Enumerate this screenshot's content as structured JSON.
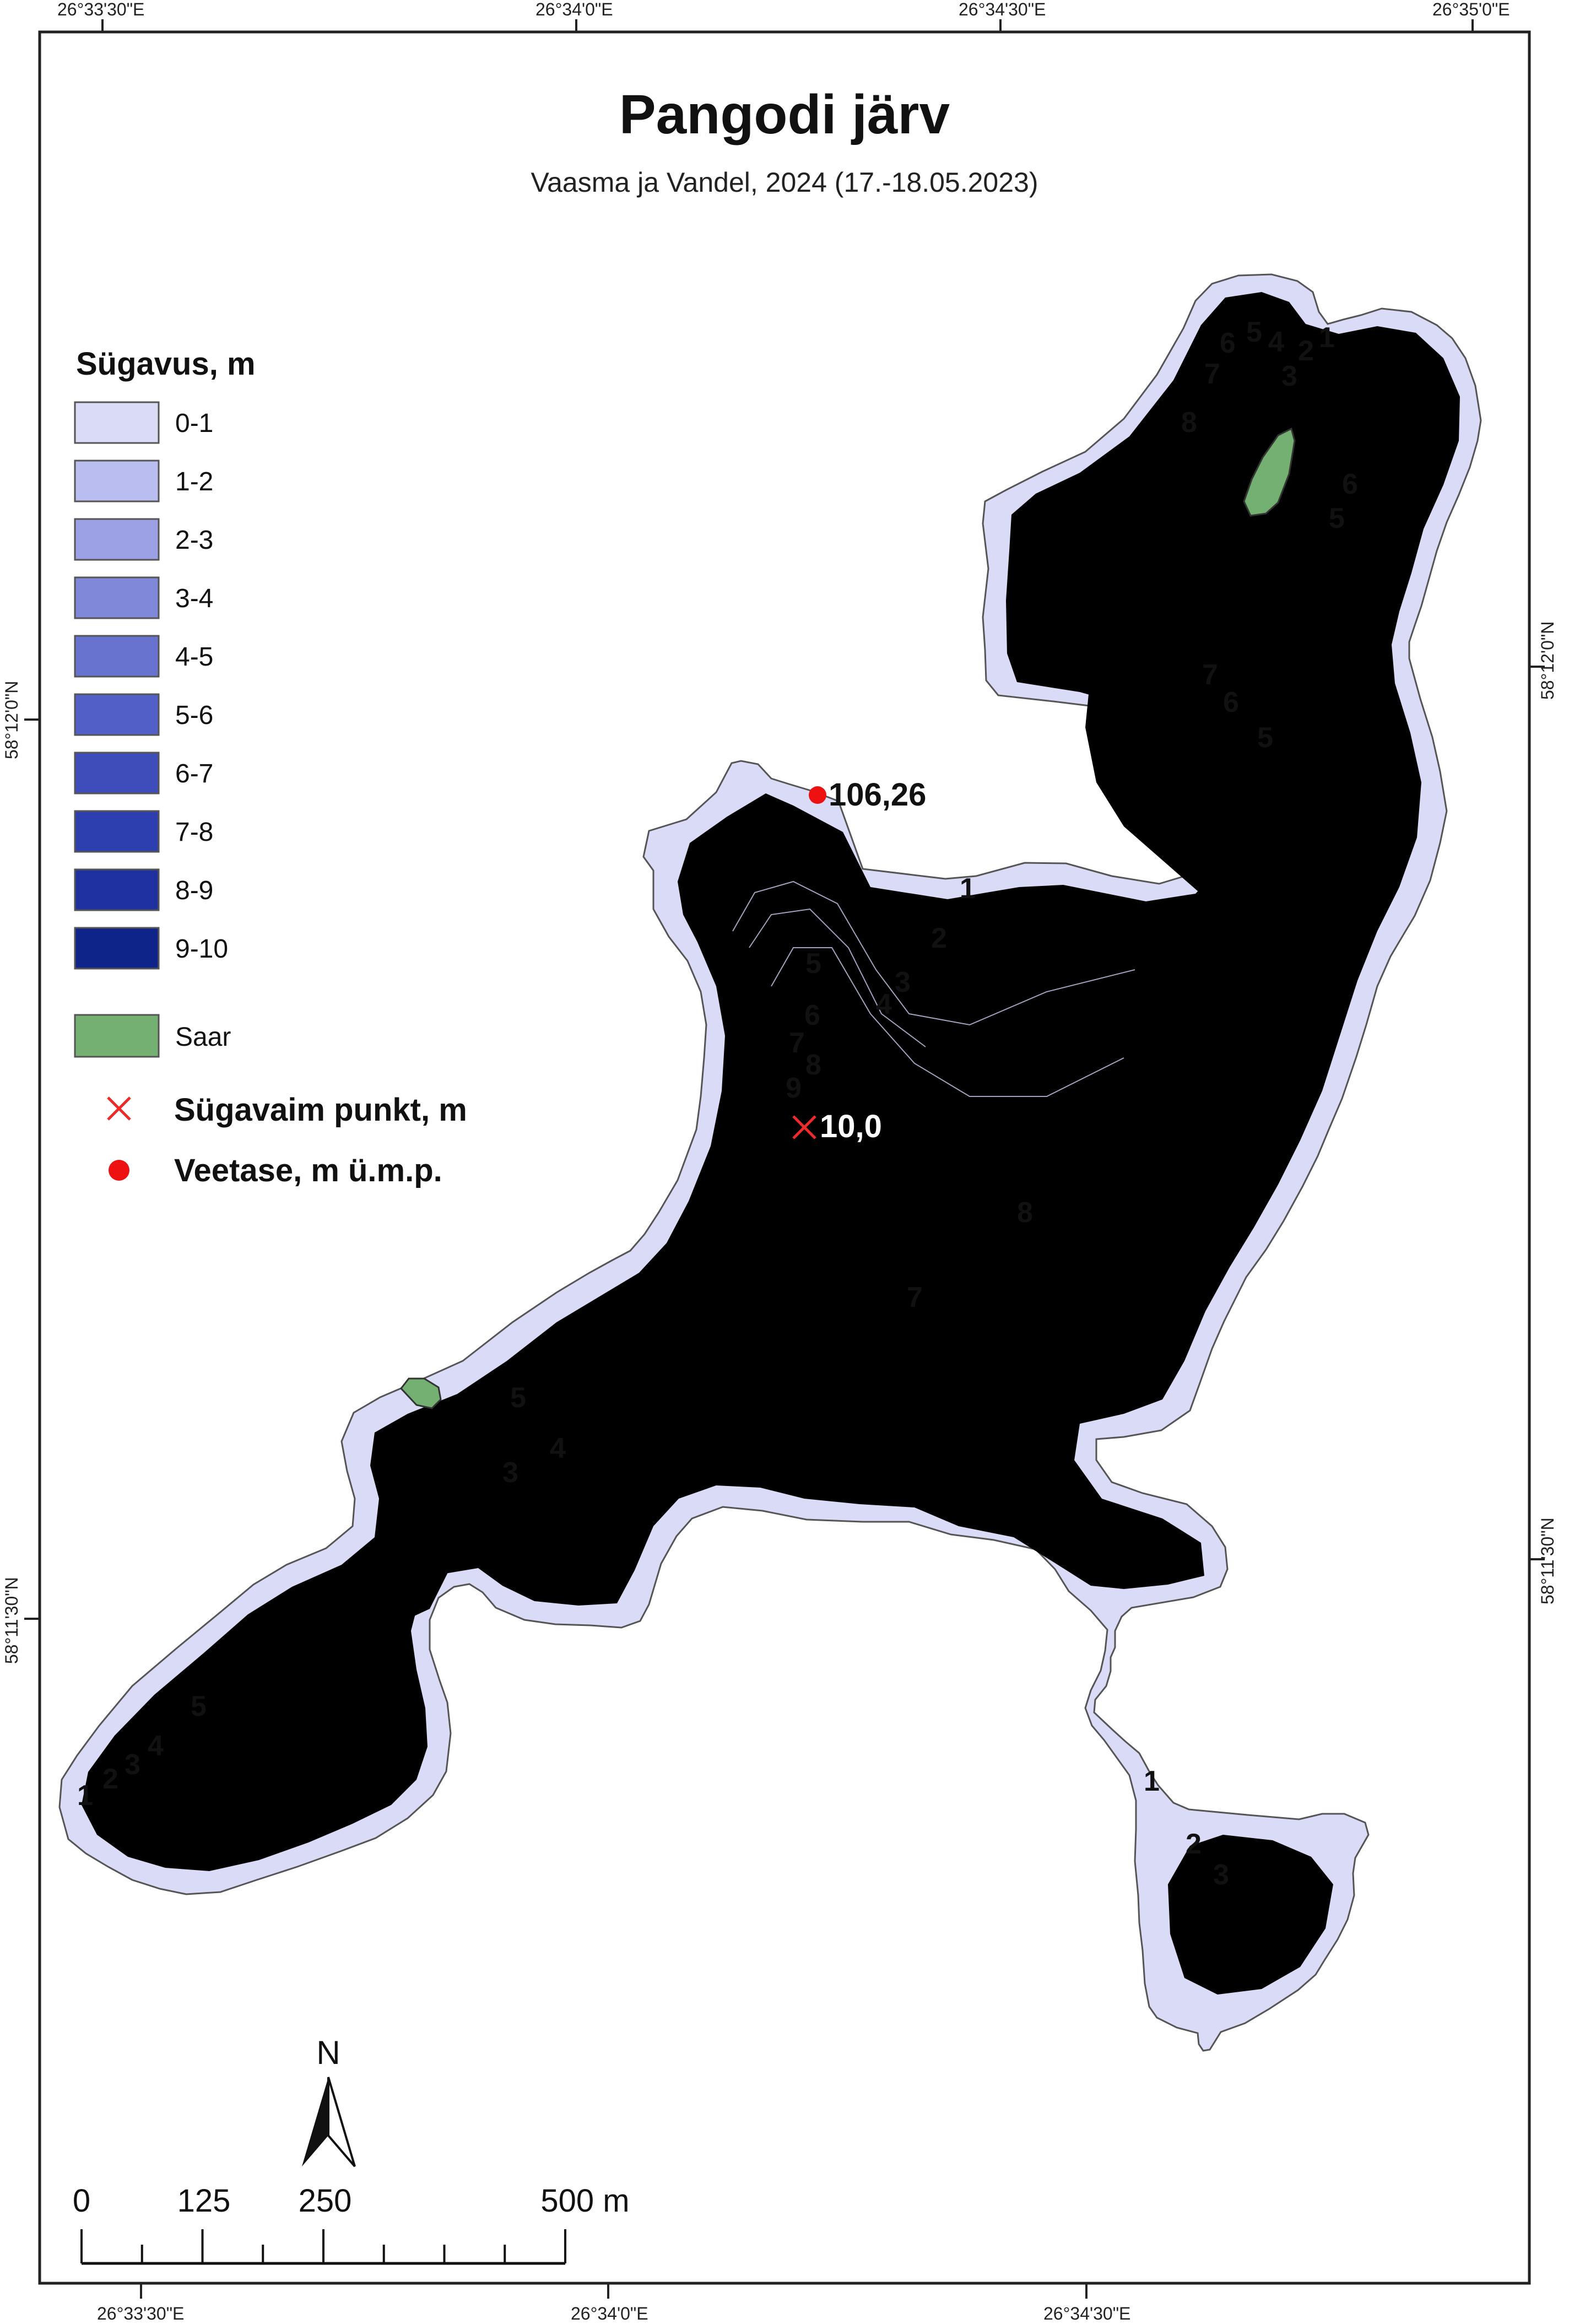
{
  "map": {
    "title": "Pangodi järv",
    "subtitle": "Vaasma ja Vandel, 2024",
    "subtitle_date": "(17.-18.05.2023)"
  },
  "coordinates": {
    "top": [
      "26°33'30\"E",
      "26°34'0\"E",
      "26°34'30\"E",
      "26°35'0\"E"
    ],
    "bottom": [
      "26°33'30\"E",
      "26°34'0\"E",
      "26°34'30\"E"
    ],
    "left": [
      "58°12'0\"N",
      "58°11'30\"N"
    ],
    "right": [
      "58°12'0\"N",
      "58°11'30\"N"
    ]
  },
  "legend": {
    "title": "Sügavus, m",
    "classes": [
      {
        "label": "0-1",
        "color": "#d9dbf7"
      },
      {
        "label": "1-2",
        "color": "#b9bdef"
      },
      {
        "label": "2-3",
        "color": "#9ba1e4"
      },
      {
        "label": "3-4",
        "color": "#8088da"
      },
      {
        "label": "4-5",
        "color": "#6872cf"
      },
      {
        "label": "5-6",
        "color": "#525fc6"
      },
      {
        "label": "6-7",
        "color": "#3f4dbb"
      },
      {
        "label": "7-8",
        "color": "#2d3fae"
      },
      {
        "label": "8-9",
        "color": "#1e319f"
      },
      {
        "label": "9-10",
        "color": "#0e2488"
      }
    ],
    "island_label": "Saar",
    "island_color": "#74b072",
    "deepest_point_label": "Sügavaim punkt, m",
    "water_level_label": "Veetase, m ü.m.p."
  },
  "points": {
    "deepest_value": "10,0",
    "water_level_value": "106,26"
  },
  "depth_labels": [
    "6",
    "5",
    "4",
    "2",
    "1",
    "7",
    "3",
    "8",
    "6",
    "5",
    "7",
    "6",
    "5",
    "1",
    "2",
    "3",
    "4",
    "5",
    "6",
    "7",
    "8",
    "9",
    "8",
    "7",
    "5",
    "4",
    "3",
    "5",
    "4",
    "3",
    "2",
    "1",
    "1",
    "2",
    "3"
  ],
  "scale_bar": {
    "labels": [
      "0",
      "125",
      "250",
      "500 m"
    ],
    "north_label": "N"
  }
}
